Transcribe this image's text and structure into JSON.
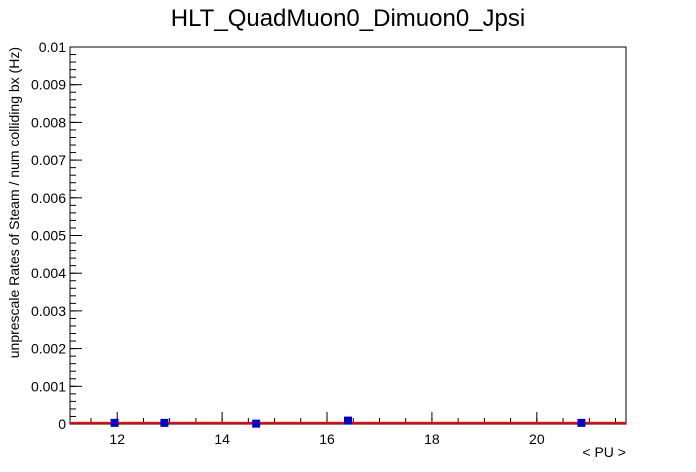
{
  "chart_data": {
    "type": "scatter",
    "title": "HLT_QuadMuon0_Dimuon0_Jpsi",
    "xlabel": "< PU >",
    "ylabel": "unprescale Rates of Steam / num colliding bx (Hz)",
    "xlim": [
      11.1,
      21.7
    ],
    "ylim": [
      0,
      0.01
    ],
    "x_ticks": [
      12,
      14,
      16,
      18,
      20
    ],
    "x_tick_labels": [
      "12",
      "14",
      "16",
      "18",
      "20"
    ],
    "y_ticks": [
      0,
      0.001,
      0.002,
      0.003,
      0.004,
      0.005,
      0.006,
      0.007,
      0.008,
      0.009,
      0.01
    ],
    "y_tick_labels": [
      "0",
      "0.001",
      "0.002",
      "0.003",
      "0.004",
      "0.005",
      "0.006",
      "0.007",
      "0.008",
      "0.009",
      "0.01"
    ],
    "grid": false,
    "series": [
      {
        "marker": "square",
        "color": "#0000cc",
        "x": [
          11.95,
          12.9,
          14.65,
          16.4,
          20.85
        ],
        "y": [
          3e-05,
          3e-05,
          1e-05,
          9e-05,
          3e-05
        ]
      }
    ],
    "fit_line": {
      "color": "#ff0000",
      "x": [
        11.1,
        21.7
      ],
      "y": [
        3e-05,
        3e-05
      ]
    }
  }
}
